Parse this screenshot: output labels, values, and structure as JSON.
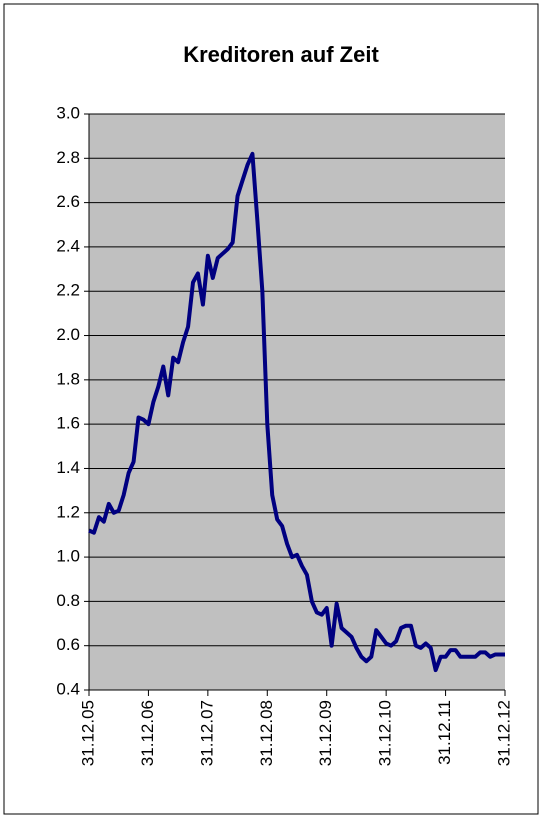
{
  "chart_data": {
    "type": "line",
    "title": "Kreditoren auf Zeit",
    "x": [
      2006,
      2006.083,
      2006.167,
      2006.25,
      2006.333,
      2006.417,
      2006.5,
      2006.583,
      2006.667,
      2006.75,
      2006.833,
      2006.917,
      2007,
      2007.083,
      2007.167,
      2007.25,
      2007.333,
      2007.417,
      2007.5,
      2007.583,
      2007.667,
      2007.75,
      2007.833,
      2007.917,
      2008,
      2008.083,
      2008.167,
      2008.25,
      2008.333,
      2008.417,
      2008.5,
      2008.583,
      2008.667,
      2008.75,
      2008.833,
      2008.917,
      2009,
      2009.083,
      2009.167,
      2009.25,
      2009.333,
      2009.417,
      2009.5,
      2009.583,
      2009.667,
      2009.75,
      2009.833,
      2009.917,
      2010,
      2010.083,
      2010.167,
      2010.25,
      2010.333,
      2010.417,
      2010.5,
      2010.583,
      2010.667,
      2010.75,
      2010.833,
      2010.917,
      2011,
      2011.083,
      2011.167,
      2011.25,
      2011.333,
      2011.417,
      2011.5,
      2011.583,
      2011.667,
      2011.75,
      2011.833,
      2011.917,
      2012,
      2012.083,
      2012.167,
      2012.25,
      2012.333,
      2012.417,
      2012.5,
      2012.583,
      2012.667,
      2012.75,
      2012.833,
      2012.917,
      2013
    ],
    "values": [
      1.12,
      1.11,
      1.18,
      1.16,
      1.24,
      1.2,
      1.21,
      1.28,
      1.38,
      1.43,
      1.63,
      1.62,
      1.6,
      1.7,
      1.77,
      1.86,
      1.73,
      1.9,
      1.88,
      1.97,
      2.04,
      2.24,
      2.28,
      2.14,
      2.36,
      2.26,
      2.35,
      2.37,
      2.39,
      2.42,
      2.63,
      2.7,
      2.77,
      2.82,
      2.52,
      2.2,
      1.6,
      1.28,
      1.17,
      1.14,
      1.06,
      1.0,
      1.01,
      0.96,
      0.92,
      0.8,
      0.75,
      0.74,
      0.77,
      0.6,
      0.79,
      0.68,
      0.66,
      0.64,
      0.59,
      0.55,
      0.53,
      0.55,
      0.67,
      0.64,
      0.61,
      0.6,
      0.62,
      0.68,
      0.69,
      0.69,
      0.6,
      0.59,
      0.61,
      0.59,
      0.49,
      0.55,
      0.55,
      0.58,
      0.58,
      0.55,
      0.55,
      0.55,
      0.55,
      0.57,
      0.57,
      0.55,
      0.56,
      0.56,
      0.56
    ],
    "color": "#000080",
    "xlim": [
      2006,
      2013
    ],
    "xticks": [
      {
        "value": 2006,
        "label": "31.12.05"
      },
      {
        "value": 2007,
        "label": "31.12.06"
      },
      {
        "value": 2008,
        "label": "31.12.07"
      },
      {
        "value": 2009,
        "label": "31.12.08"
      },
      {
        "value": 2010,
        "label": "31.12.09"
      },
      {
        "value": 2011,
        "label": "31.12.10"
      },
      {
        "value": 2012,
        "label": "31.12.11"
      },
      {
        "value": 2013,
        "label": "31.12.12"
      }
    ],
    "ylim": [
      0.4,
      3
    ],
    "yticks": [
      0.4,
      0.6,
      0.8,
      {
        "value": 1,
        "label": "1.0"
      },
      1.2,
      1.4,
      1.6,
      1.8,
      {
        "value": 2,
        "label": "2.0"
      },
      2.2,
      2.4,
      2.6,
      2.8,
      {
        "value": 3,
        "label": "3.0"
      }
    ],
    "grid": true
  }
}
